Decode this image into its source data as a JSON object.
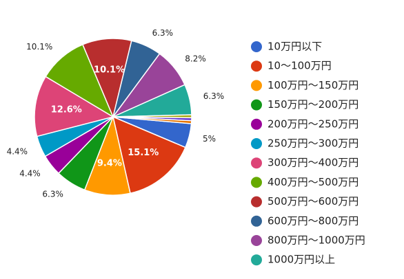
{
  "chart_data": {
    "type": "pie",
    "title": "",
    "legend_position": "right",
    "start_angle_deg": 95,
    "direction": "clockwise",
    "categories": [
      "10万円以下",
      "10〜100万円",
      "100万円〜150万円",
      "150万円〜200万円",
      "200万円〜250万円",
      "250万円〜300万円",
      "300万円〜400万円",
      "400万円〜500万円",
      "500万円〜600万円",
      "600万円〜800万円",
      "800万円〜1000万円",
      "1000万円以上"
    ],
    "values": [
      5,
      15.1,
      9.4,
      6.3,
      4.4,
      4.4,
      12.6,
      10.1,
      10.1,
      6.3,
      8.2,
      6.3
    ],
    "data_labels": [
      "5%",
      "15.1%",
      "9.4%",
      "6.3%",
      "4.4%",
      "4.4%",
      "12.6%",
      "10.1%",
      "10.1%",
      "6.3%",
      "8.2%",
      "6.3%"
    ],
    "label_inside": [
      false,
      true,
      true,
      false,
      false,
      false,
      true,
      false,
      true,
      false,
      false,
      false
    ],
    "colors": [
      "#3366cc",
      "#dc3912",
      "#ff9900",
      "#109618",
      "#990099",
      "#0099c6",
      "#dd4477",
      "#66aa00",
      "#b82e2e",
      "#316395",
      "#994499",
      "#22aa99"
    ],
    "extra_slices": [
      {
        "value": 0.6,
        "color": "#aaaa11"
      },
      {
        "value": 0.6,
        "color": "#6633cc"
      },
      {
        "value": 0.6,
        "color": "#e67300"
      }
    ]
  }
}
